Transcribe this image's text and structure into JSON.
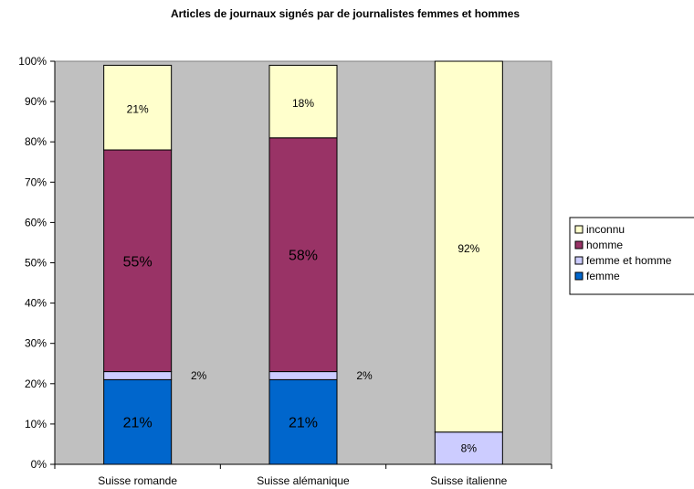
{
  "chart_data": {
    "type": "bar",
    "stacked": true,
    "title": "Articles de journaux signés par de journalistes femmes et hommes",
    "xlabel": "",
    "ylabel": "",
    "ylim": [
      0,
      100
    ],
    "y_ticks": [
      "0%",
      "10%",
      "20%",
      "30%",
      "40%",
      "50%",
      "60%",
      "70%",
      "80%",
      "90%",
      "100%"
    ],
    "categories": [
      "Suisse romande",
      "Suisse alémanique",
      "Suisse italienne"
    ],
    "series": [
      {
        "name": "femme",
        "color": "#0066cc",
        "values": [
          21,
          21,
          0
        ],
        "labels": [
          "21%",
          "21%",
          ""
        ]
      },
      {
        "name": "femme et homme",
        "color": "#ccccff",
        "values": [
          2,
          2,
          8
        ],
        "labels": [
          "2%",
          "2%",
          "8%"
        ]
      },
      {
        "name": "homme",
        "color": "#993366",
        "values": [
          55,
          58,
          0
        ],
        "labels": [
          "55%",
          "58%",
          ""
        ]
      },
      {
        "name": "inconnu",
        "color": "#ffffcc",
        "values": [
          21,
          18,
          92
        ],
        "labels": [
          "21%",
          "18%",
          "92%"
        ]
      }
    ],
    "legend_order": [
      "inconnu",
      "homme",
      "femme et homme",
      "femme"
    ],
    "legend_position": "right",
    "plot_background": "#c0c0c0",
    "grid": false
  }
}
